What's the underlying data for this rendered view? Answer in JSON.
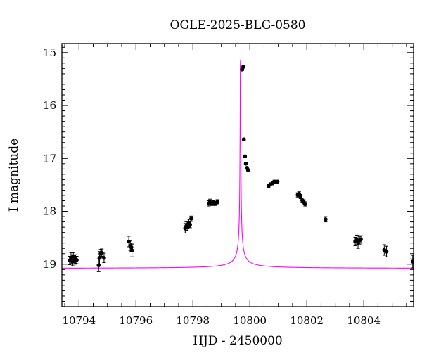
{
  "chart_data": {
    "type": "scatter",
    "title": "OGLE-2025-BLG-0580",
    "xlabel": "HJD - 2450000",
    "ylabel": "I magnitude",
    "xlim": [
      10793.4,
      10805.75
    ],
    "ylim": [
      19.8,
      14.83
    ],
    "y_inverted": true,
    "grid": false,
    "legend": "none",
    "x_ticks": [
      "10794",
      "10796",
      "10798",
      "10800",
      "10802",
      "10804"
    ],
    "y_ticks": [
      "15",
      "16",
      "17",
      "18",
      "19"
    ],
    "x_tick_values": [
      10794,
      10796,
      10798,
      10800,
      10802,
      10804
    ],
    "y_tick_values": [
      15,
      16,
      17,
      18,
      19
    ],
    "model": {
      "color": "#ff00ff",
      "t0": 10799.67,
      "baseline": 19.08,
      "peak": 14.83,
      "k": 0.0095
    },
    "series": [
      {
        "marker_color": "#000000",
        "points": [
          [
            10793.67,
            18.93,
            0.08
          ],
          [
            10793.72,
            18.88,
            0.1
          ],
          [
            10793.78,
            18.95,
            0.08
          ],
          [
            10793.8,
            18.85,
            0.07
          ],
          [
            10793.85,
            18.93,
            0.07
          ],
          [
            10793.88,
            18.9,
            0.08
          ],
          [
            10793.92,
            18.92,
            0.07
          ],
          [
            10794.69,
            19.02,
            0.12
          ],
          [
            10794.72,
            18.88,
            0.12
          ],
          [
            10794.76,
            18.8,
            0.08
          ],
          [
            10794.8,
            18.78,
            0.07
          ],
          [
            10794.88,
            18.88,
            0.09
          ],
          [
            10795.75,
            18.57,
            0.1
          ],
          [
            10795.8,
            18.65,
            0.09
          ],
          [
            10795.84,
            18.68,
            0.08
          ],
          [
            10795.86,
            18.74,
            0.12
          ],
          [
            10797.73,
            18.32,
            0.09
          ],
          [
            10797.77,
            18.28,
            0.08
          ],
          [
            10797.82,
            18.3,
            0.07
          ],
          [
            10797.86,
            18.22,
            0.07
          ],
          [
            10797.9,
            18.25,
            0.06
          ],
          [
            10797.94,
            18.14,
            0.05
          ],
          [
            10798.56,
            17.85,
            0.05
          ],
          [
            10798.6,
            17.82,
            0.05
          ],
          [
            10798.66,
            17.85,
            0.04
          ],
          [
            10798.72,
            17.84,
            0.04
          ],
          [
            10798.78,
            17.85,
            0.04
          ],
          [
            10798.86,
            17.82,
            0.04
          ],
          [
            10799.73,
            15.32,
            0.02
          ],
          [
            10799.77,
            15.27,
            0.02
          ],
          [
            10799.79,
            16.64,
            0.02
          ],
          [
            10799.83,
            16.96,
            0.02
          ],
          [
            10799.86,
            17.1,
            0.02
          ],
          [
            10799.9,
            17.18,
            0.02
          ],
          [
            10799.94,
            17.22,
            0.02
          ],
          [
            10800.66,
            17.52,
            0.03
          ],
          [
            10800.72,
            17.49,
            0.03
          ],
          [
            10800.8,
            17.47,
            0.03
          ],
          [
            10800.86,
            17.44,
            0.03
          ],
          [
            10800.92,
            17.45,
            0.03
          ],
          [
            10800.97,
            17.44,
            0.03
          ],
          [
            10801.68,
            17.69,
            0.04
          ],
          [
            10801.73,
            17.67,
            0.04
          ],
          [
            10801.78,
            17.72,
            0.04
          ],
          [
            10801.84,
            17.79,
            0.04
          ],
          [
            10801.89,
            17.82,
            0.04
          ],
          [
            10801.94,
            17.86,
            0.04
          ],
          [
            10802.66,
            18.15,
            0.05
          ],
          [
            10803.7,
            18.57,
            0.08
          ],
          [
            10803.76,
            18.54,
            0.09
          ],
          [
            10803.8,
            18.6,
            0.1
          ],
          [
            10803.85,
            18.55,
            0.07
          ],
          [
            10803.9,
            18.53,
            0.07
          ],
          [
            10804.72,
            18.73,
            0.1
          ],
          [
            10804.8,
            18.76,
            0.1
          ],
          [
            10805.72,
            18.95,
            0.12
          ]
        ]
      }
    ]
  }
}
